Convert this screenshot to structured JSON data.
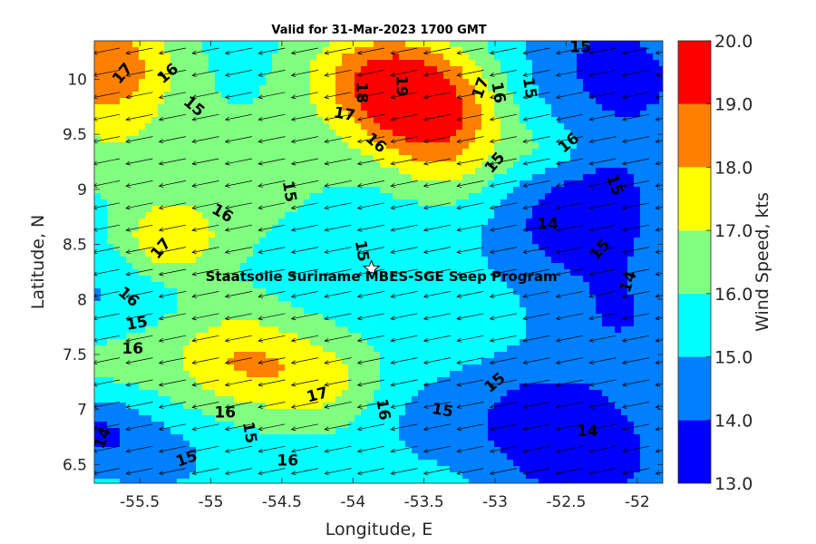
{
  "chart_data": {
    "type": "heatmap",
    "title": "Valid for 31-Mar-2023 1700 GMT",
    "xlabel": "Longitude, E",
    "ylabel": "Latitude, N",
    "colorbar_label": "Wind Speed, kts",
    "xlim": [
      -55.82,
      -51.82
    ],
    "ylim": [
      6.33,
      10.35
    ],
    "xticks": [
      -55.5,
      -55,
      -54.5,
      -54,
      -53.5,
      -53,
      -52.5,
      -52
    ],
    "xtick_labels": [
      "-55.5",
      "-55",
      "-54.5",
      "-54",
      "-53.5",
      "-53",
      "-52.5",
      "-52"
    ],
    "yticks": [
      6.5,
      7,
      7.5,
      8,
      8.5,
      9,
      9.5,
      10
    ],
    "ytick_labels": [
      "6.5",
      "7",
      "7.5",
      "8",
      "8.5",
      "9",
      "9.5",
      "10"
    ],
    "colorbar": {
      "range": [
        13,
        20
      ],
      "ticks": [
        13,
        14,
        15,
        16,
        17,
        18,
        19,
        20
      ],
      "tick_labels": [
        "13.0",
        "14.0",
        "15.0",
        "16.0",
        "17.0",
        "18.0",
        "19.0",
        "20.0"
      ],
      "bands": [
        {
          "min": 13,
          "max": 14,
          "color": "#0000ff"
        },
        {
          "min": 14,
          "max": 15,
          "color": "#0080ff"
        },
        {
          "min": 15,
          "max": 16,
          "color": "#00ffff"
        },
        {
          "min": 16,
          "max": 17,
          "color": "#80ff80"
        },
        {
          "min": 17,
          "max": 18,
          "color": "#ffff00"
        },
        {
          "min": 18,
          "max": 19,
          "color": "#ff8000"
        },
        {
          "min": 19,
          "max": 20,
          "color": "#ff0000"
        }
      ]
    },
    "features": [
      {
        "lon": -55.75,
        "lat": 10.2,
        "speed": 18.3,
        "spread": 0.35
      },
      {
        "lon": -53.55,
        "lat": 9.85,
        "speed": 19.4,
        "spread": 0.35
      },
      {
        "lon": -53.3,
        "lat": 9.35,
        "speed": 17.4,
        "spread": 0.35
      },
      {
        "lon": -53.95,
        "lat": 10.1,
        "speed": 17.3,
        "spread": 0.35
      },
      {
        "lon": -55.3,
        "lat": 8.55,
        "speed": 17.7,
        "spread": 0.25
      },
      {
        "lon": -54.8,
        "lat": 7.45,
        "speed": 17.9,
        "spread": 0.35
      },
      {
        "lon": -54.2,
        "lat": 7.25,
        "speed": 17.1,
        "spread": 0.3
      },
      {
        "lon": -55.7,
        "lat": 9.6,
        "speed": 16.8,
        "spread": 0.4
      },
      {
        "lon": -55.45,
        "lat": 9.7,
        "speed": 15.4,
        "spread": 0.2
      },
      {
        "lon": -52.6,
        "lat": 9.35,
        "speed": 16.5,
        "spread": 0.2
      },
      {
        "lon": -54.55,
        "lat": 9.0,
        "speed": 16.6,
        "spread": 0.5
      },
      {
        "lon": -55.65,
        "lat": 7.45,
        "speed": 16.4,
        "spread": 0.3
      },
      {
        "lon": -54.1,
        "lat": 8.6,
        "speed": 14.7,
        "spread": 0.4
      },
      {
        "lon": -55.75,
        "lat": 8.0,
        "speed": 14.8,
        "spread": 0.3
      },
      {
        "lon": -52.4,
        "lat": 8.75,
        "speed": 13.3,
        "spread": 0.45
      },
      {
        "lon": -51.95,
        "lat": 9.9,
        "speed": 14.3,
        "spread": 0.5
      },
      {
        "lon": -52.3,
        "lat": 10.25,
        "speed": 14.6,
        "spread": 0.4
      },
      {
        "lon": -52.35,
        "lat": 6.6,
        "speed": 13.4,
        "spread": 0.45
      },
      {
        "lon": -55.8,
        "lat": 6.8,
        "speed": 13.9,
        "spread": 0.25
      },
      {
        "lon": -52.1,
        "lat": 7.8,
        "speed": 14.2,
        "spread": 0.35
      },
      {
        "lon": -52.8,
        "lat": 7.0,
        "speed": 14.4,
        "spread": 0.35
      },
      {
        "lon": -55.3,
        "lat": 6.6,
        "speed": 14.8,
        "spread": 0.3
      },
      {
        "lon": -53.5,
        "lat": 6.9,
        "speed": 14.8,
        "spread": 0.3
      }
    ],
    "wind_vector": {
      "direction": "towards south-west",
      "u": -1.0,
      "v": -0.2
    },
    "contour_labels": [
      {
        "text": "17",
        "lon": -55.62,
        "lat": 10.05,
        "angle": -50
      },
      {
        "text": "16",
        "lon": -55.3,
        "lat": 10.05,
        "angle": -40
      },
      {
        "text": "15",
        "lon": -55.12,
        "lat": 9.75,
        "angle": 40
      },
      {
        "text": "18",
        "lon": -53.94,
        "lat": 9.88,
        "angle": 90
      },
      {
        "text": "19",
        "lon": -53.66,
        "lat": 9.94,
        "angle": 90
      },
      {
        "text": "17",
        "lon": -53.1,
        "lat": 9.92,
        "angle": -70
      },
      {
        "text": "16",
        "lon": -52.98,
        "lat": 9.88,
        "angle": 80
      },
      {
        "text": "15",
        "lon": -52.76,
        "lat": 9.92,
        "angle": 80
      },
      {
        "text": "17",
        "lon": -54.06,
        "lat": 9.68,
        "angle": 10
      },
      {
        "text": "16",
        "lon": -53.84,
        "lat": 9.42,
        "angle": 40
      },
      {
        "text": "15",
        "lon": -53.0,
        "lat": 9.24,
        "angle": -50
      },
      {
        "text": "16",
        "lon": -52.48,
        "lat": 9.42,
        "angle": -40
      },
      {
        "text": "15",
        "lon": -54.45,
        "lat": 8.98,
        "angle": 80
      },
      {
        "text": "15",
        "lon": -52.16,
        "lat": 9.04,
        "angle": 70
      },
      {
        "text": "16",
        "lon": -54.92,
        "lat": 8.78,
        "angle": 30
      },
      {
        "text": "14",
        "lon": -52.63,
        "lat": 8.68,
        "angle": 0
      },
      {
        "text": "17",
        "lon": -55.35,
        "lat": 8.46,
        "angle": -50
      },
      {
        "text": "15",
        "lon": -53.94,
        "lat": 8.44,
        "angle": 80
      },
      {
        "text": "15",
        "lon": -52.26,
        "lat": 8.45,
        "angle": -50
      },
      {
        "text": "14",
        "lon": -52.06,
        "lat": 8.16,
        "angle": -70
      },
      {
        "text": "16",
        "lon": -55.58,
        "lat": 8.02,
        "angle": 40
      },
      {
        "text": "15",
        "lon": -55.52,
        "lat": 7.78,
        "angle": -10
      },
      {
        "text": "16",
        "lon": -55.55,
        "lat": 7.55,
        "angle": 0
      },
      {
        "text": "17",
        "lon": -54.25,
        "lat": 7.13,
        "angle": -15
      },
      {
        "text": "16",
        "lon": -54.9,
        "lat": 6.97,
        "angle": 0
      },
      {
        "text": "16",
        "lon": -53.79,
        "lat": 7.0,
        "angle": 80
      },
      {
        "text": "15",
        "lon": -53.37,
        "lat": 6.99,
        "angle": 10
      },
      {
        "text": "15",
        "lon": -53.0,
        "lat": 7.24,
        "angle": -40
      },
      {
        "text": "15",
        "lon": -54.73,
        "lat": 6.79,
        "angle": 80
      },
      {
        "text": "14",
        "lon": -55.76,
        "lat": 6.74,
        "angle": -70
      },
      {
        "text": "15",
        "lon": -55.17,
        "lat": 6.55,
        "angle": -20
      },
      {
        "text": "16",
        "lon": -54.46,
        "lat": 6.53,
        "angle": 0
      },
      {
        "text": "14",
        "lon": -52.35,
        "lat": 6.8,
        "angle": 0
      },
      {
        "text": "15",
        "lon": -52.4,
        "lat": 10.29,
        "angle": 0
      }
    ],
    "site_marker": {
      "lon": -53.87,
      "lat": 8.28,
      "symbol": "star"
    },
    "annotation": {
      "text": "Staatsolie Suriname MBES-SGE Seep Program",
      "lon": -53.8,
      "lat": 8.21
    }
  }
}
